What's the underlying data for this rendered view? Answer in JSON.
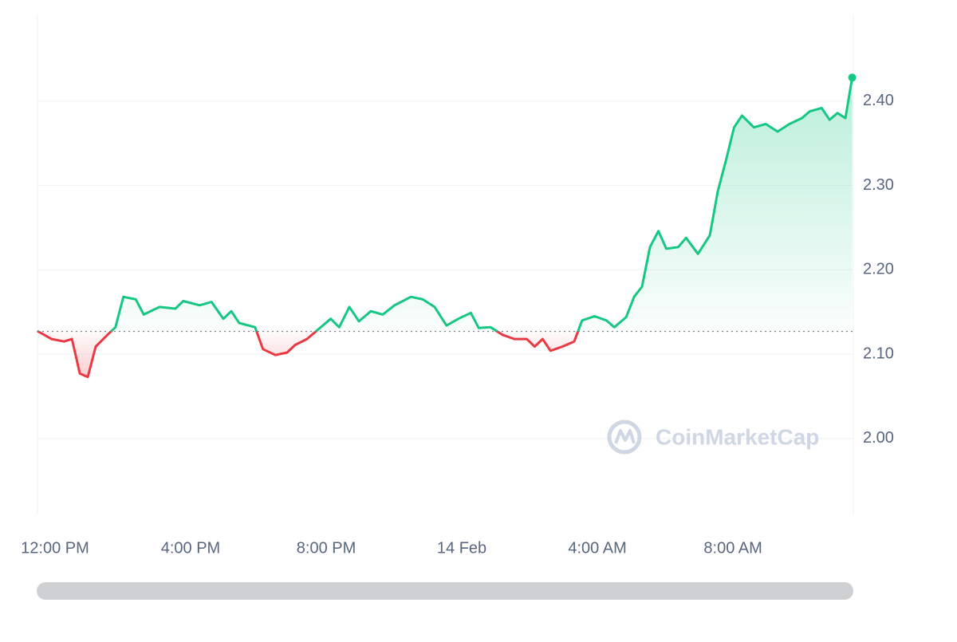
{
  "chart_data": {
    "type": "line",
    "watermark": "CoinMarketCap",
    "color_up": "#16c784",
    "color_down": "#ea3943",
    "baseline": 2.127,
    "x": [
      "13 Feb 11:30",
      "13 Feb 11:54",
      "13 Feb 12:16",
      "13 Feb 12:30",
      "13 Feb 12:44",
      "13 Feb 12:58",
      "13 Feb 13:12",
      "13 Feb 13:33",
      "13 Feb 13:47",
      "13 Feb 14:01",
      "13 Feb 14:23",
      "13 Feb 14:37",
      "13 Feb 15:05",
      "13 Feb 15:33",
      "13 Feb 15:47",
      "13 Feb 16:16",
      "13 Feb 16:37",
      "13 Feb 16:58",
      "13 Feb 17:12",
      "13 Feb 17:26",
      "13 Feb 17:54",
      "13 Feb 18:08",
      "13 Feb 18:30",
      "13 Feb 18:51",
      "13 Feb 19:05",
      "13 Feb 19:26",
      "13 Feb 19:47",
      "13 Feb 20:08",
      "13 Feb 20:23",
      "13 Feb 20:41",
      "13 Feb 20:58",
      "13 Feb 21:19",
      "13 Feb 21:40",
      "13 Feb 22:01",
      "13 Feb 22:30",
      "13 Feb 22:51",
      "13 Feb 23:12",
      "13 Feb 23:33",
      "13 Feb 23:54",
      "14 Feb 00:16",
      "14 Feb 00:30",
      "14 Feb 00:51",
      "14 Feb 01:12",
      "14 Feb 01:33",
      "14 Feb 01:55",
      "14 Feb 02:09",
      "14 Feb 02:23",
      "14 Feb 02:37",
      "14 Feb 02:58",
      "14 Feb 03:19",
      "14 Feb 03:33",
      "14 Feb 03:55",
      "14 Feb 04:16",
      "14 Feb 04:30",
      "14 Feb 04:51",
      "14 Feb 05:05",
      "14 Feb 05:19",
      "14 Feb 05:33",
      "14 Feb 05:48",
      "14 Feb 06:02",
      "14 Feb 06:23",
      "14 Feb 06:37",
      "14 Feb 06:58",
      "14 Feb 07:19",
      "14 Feb 07:33",
      "14 Feb 07:48",
      "14 Feb 08:02",
      "14 Feb 08:16",
      "14 Feb 08:37",
      "14 Feb 08:58",
      "14 Feb 09:19",
      "14 Feb 09:40",
      "14 Feb 10:02",
      "14 Feb 10:16",
      "14 Feb 10:37",
      "14 Feb 10:51",
      "14 Feb 11:05",
      "14 Feb 11:19",
      "14 Feb 11:31"
    ],
    "values": [
      2.127,
      2.118,
      2.115,
      2.118,
      2.077,
      2.073,
      2.109,
      2.123,
      2.132,
      2.168,
      2.165,
      2.147,
      2.156,
      2.154,
      2.163,
      2.158,
      2.162,
      2.142,
      2.151,
      2.137,
      2.132,
      2.106,
      2.099,
      2.102,
      2.111,
      2.118,
      2.13,
      2.142,
      2.132,
      2.156,
      2.139,
      2.151,
      2.147,
      2.158,
      2.168,
      2.165,
      2.156,
      2.134,
      2.142,
      2.149,
      2.131,
      2.132,
      2.123,
      2.118,
      2.118,
      2.109,
      2.118,
      2.104,
      2.109,
      2.115,
      2.14,
      2.145,
      2.14,
      2.132,
      2.144,
      2.168,
      2.18,
      2.227,
      2.246,
      2.225,
      2.227,
      2.238,
      2.219,
      2.241,
      2.293,
      2.331,
      2.369,
      2.383,
      2.369,
      2.373,
      2.364,
      2.373,
      2.38,
      2.388,
      2.392,
      2.378,
      2.386,
      2.38,
      2.428
    ],
    "xlim": [
      "13 Feb 11:29",
      "14 Feb 11:33"
    ],
    "xticks": [
      {
        "value": "13 Feb 12:00",
        "label": "12:00 PM"
      },
      {
        "value": "13 Feb 16:00",
        "label": "4:00 PM"
      },
      {
        "value": "13 Feb 20:00",
        "label": "8:00 PM"
      },
      {
        "value": "14 Feb 00:00",
        "label": "14 Feb"
      },
      {
        "value": "14 Feb 04:00",
        "label": "4:00 AM"
      },
      {
        "value": "14 Feb 08:00",
        "label": "8:00 AM"
      }
    ],
    "ylim": [
      1.91,
      2.503
    ],
    "yticks": [
      {
        "value": 2.0,
        "label": "2.00"
      },
      {
        "value": 2.1,
        "label": "2.10"
      },
      {
        "value": 2.2,
        "label": "2.20"
      },
      {
        "value": 2.3,
        "label": "2.30"
      },
      {
        "value": 2.4,
        "label": "2.40"
      }
    ],
    "grid": true
  }
}
